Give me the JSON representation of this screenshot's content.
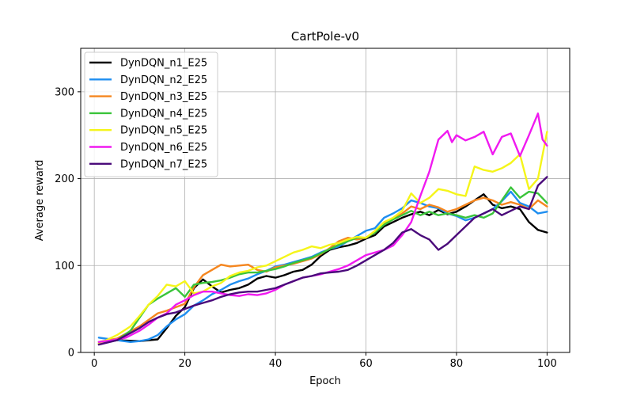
{
  "chart_data": {
    "type": "line",
    "title": "CartPole-v0",
    "xlabel": "Epoch",
    "ylabel": "Average reward",
    "xlim": [
      -3,
      105
    ],
    "ylim": [
      0,
      350
    ],
    "xticks": [
      0,
      20,
      40,
      60,
      80,
      100
    ],
    "yticks": [
      0,
      100,
      200,
      300
    ],
    "grid": true,
    "legend_position": "top-left",
    "series": [
      {
        "name": "DynDQN_n1_E25",
        "color": "#000000",
        "x": [
          1,
          5,
          10,
          14,
          16,
          18,
          20,
          22,
          24,
          26,
          28,
          30,
          32,
          34,
          36,
          38,
          40,
          42,
          44,
          46,
          48,
          50,
          52,
          54,
          56,
          58,
          60,
          62,
          64,
          66,
          68,
          70,
          72,
          74,
          76,
          78,
          80,
          82,
          84,
          86,
          88,
          90,
          92,
          94,
          96,
          98,
          100
        ],
        "values": [
          10,
          14,
          13,
          15,
          28,
          42,
          52,
          74,
          84,
          76,
          69,
          72,
          74,
          78,
          85,
          88,
          86,
          89,
          93,
          95,
          101,
          111,
          118,
          121,
          123,
          126,
          131,
          135,
          145,
          150,
          155,
          159,
          162,
          158,
          164,
          159,
          162,
          168,
          175,
          182,
          170,
          166,
          168,
          165,
          150,
          141,
          138
        ]
      },
      {
        "name": "DynDQN_n2_E25",
        "color": "#1e8ef0",
        "x": [
          1,
          5,
          8,
          10,
          12,
          14,
          16,
          18,
          20,
          22,
          24,
          26,
          28,
          30,
          32,
          34,
          36,
          38,
          40,
          42,
          44,
          46,
          48,
          50,
          52,
          54,
          56,
          58,
          60,
          62,
          64,
          66,
          68,
          70,
          72,
          74,
          76,
          78,
          80,
          82,
          84,
          86,
          88,
          90,
          92,
          94,
          96,
          98,
          100
        ],
        "values": [
          17,
          14,
          12,
          13,
          15,
          20,
          30,
          38,
          44,
          54,
          60,
          67,
          72,
          78,
          82,
          85,
          90,
          94,
          99,
          101,
          104,
          107,
          110,
          115,
          119,
          122,
          128,
          134,
          140,
          143,
          155,
          160,
          166,
          175,
          172,
          168,
          166,
          160,
          157,
          152,
          155,
          160,
          165,
          174,
          185,
          172,
          168,
          160,
          162
        ]
      },
      {
        "name": "DynDQN_n3_E25",
        "color": "#f5861f",
        "x": [
          1,
          5,
          10,
          14,
          16,
          18,
          20,
          22,
          24,
          26,
          28,
          30,
          32,
          34,
          36,
          38,
          40,
          42,
          44,
          46,
          48,
          50,
          52,
          54,
          56,
          58,
          60,
          62,
          64,
          66,
          68,
          70,
          72,
          74,
          76,
          78,
          80,
          82,
          84,
          86,
          88,
          90,
          92,
          94,
          96,
          98,
          100
        ],
        "values": [
          12,
          16,
          30,
          45,
          48,
          52,
          56,
          75,
          89,
          95,
          101,
          99,
          100,
          101,
          95,
          93,
          98,
          100,
          102,
          105,
          108,
          113,
          120,
          128,
          132,
          130,
          132,
          138,
          148,
          153,
          160,
          168,
          165,
          170,
          167,
          162,
          165,
          170,
          175,
          178,
          175,
          170,
          173,
          170,
          165,
          175,
          168
        ]
      },
      {
        "name": "DynDQN_n4_E25",
        "color": "#3ac43a",
        "x": [
          1,
          5,
          8,
          10,
          12,
          14,
          16,
          18,
          20,
          22,
          24,
          26,
          28,
          30,
          32,
          34,
          36,
          38,
          40,
          42,
          44,
          46,
          48,
          50,
          52,
          54,
          56,
          58,
          60,
          62,
          64,
          66,
          68,
          70,
          72,
          74,
          76,
          78,
          80,
          82,
          84,
          86,
          88,
          90,
          92,
          94,
          96,
          98,
          100
        ],
        "values": [
          12,
          14,
          25,
          40,
          55,
          62,
          68,
          74,
          64,
          78,
          80,
          81,
          83,
          86,
          90,
          92,
          92,
          94,
          96,
          99,
          103,
          106,
          109,
          114,
          119,
          124,
          128,
          132,
          132,
          138,
          147,
          153,
          158,
          163,
          158,
          162,
          158,
          160,
          158,
          155,
          158,
          155,
          160,
          175,
          190,
          178,
          185,
          183,
          172
        ]
      },
      {
        "name": "DynDQN_n5_E25",
        "color": "#f5f51a",
        "x": [
          1,
          5,
          8,
          10,
          12,
          14,
          16,
          18,
          20,
          22,
          24,
          26,
          28,
          30,
          32,
          34,
          36,
          38,
          40,
          42,
          44,
          46,
          48,
          50,
          52,
          54,
          56,
          58,
          60,
          62,
          64,
          66,
          68,
          70,
          72,
          74,
          76,
          78,
          80,
          82,
          84,
          86,
          88,
          90,
          92,
          94,
          96,
          98,
          100
        ],
        "values": [
          10,
          20,
          30,
          42,
          55,
          65,
          78,
          76,
          82,
          68,
          70,
          76,
          80,
          88,
          92,
          94,
          98,
          100,
          105,
          110,
          115,
          118,
          122,
          120,
          124,
          126,
          130,
          133,
          132,
          140,
          150,
          155,
          163,
          183,
          172,
          178,
          188,
          186,
          182,
          180,
          214,
          210,
          208,
          212,
          218,
          228,
          188,
          200,
          254
        ]
      },
      {
        "name": "DynDQN_n6_E25",
        "color": "#f01af0",
        "x": [
          1,
          4,
          7,
          10,
          12,
          14,
          16,
          18,
          20,
          22,
          24,
          26,
          28,
          30,
          32,
          34,
          36,
          38,
          40,
          42,
          44,
          46,
          48,
          50,
          52,
          54,
          56,
          58,
          60,
          62,
          64,
          66,
          68,
          70,
          72,
          74,
          76,
          78,
          79,
          80,
          82,
          84,
          86,
          88,
          90,
          92,
          94,
          96,
          98,
          99,
          100
        ],
        "values": [
          12,
          14,
          17,
          25,
          32,
          40,
          45,
          55,
          60,
          66,
          70,
          70,
          68,
          66,
          65,
          67,
          66,
          68,
          72,
          78,
          82,
          86,
          88,
          90,
          93,
          96,
          100,
          106,
          112,
          115,
          118,
          123,
          135,
          150,
          180,
          208,
          245,
          255,
          242,
          250,
          244,
          248,
          254,
          228,
          248,
          252,
          226,
          250,
          275,
          245,
          238
        ]
      },
      {
        "name": "DynDQN_n7_E25",
        "color": "#4a0a7a",
        "x": [
          1,
          5,
          10,
          12,
          14,
          16,
          18,
          20,
          22,
          24,
          26,
          28,
          30,
          32,
          34,
          36,
          38,
          40,
          42,
          44,
          46,
          48,
          50,
          52,
          54,
          56,
          58,
          60,
          62,
          64,
          66,
          68,
          70,
          72,
          74,
          76,
          78,
          80,
          82,
          84,
          86,
          88,
          90,
          92,
          94,
          96,
          98,
          100
        ],
        "values": [
          9,
          14,
          28,
          35,
          40,
          44,
          46,
          50,
          54,
          57,
          60,
          64,
          67,
          69,
          70,
          70,
          72,
          74,
          78,
          82,
          86,
          88,
          91,
          92,
          93,
          95,
          100,
          106,
          112,
          118,
          126,
          138,
          142,
          135,
          130,
          118,
          125,
          135,
          145,
          155,
          160,
          165,
          158,
          163,
          168,
          165,
          192,
          202
        ]
      }
    ]
  }
}
